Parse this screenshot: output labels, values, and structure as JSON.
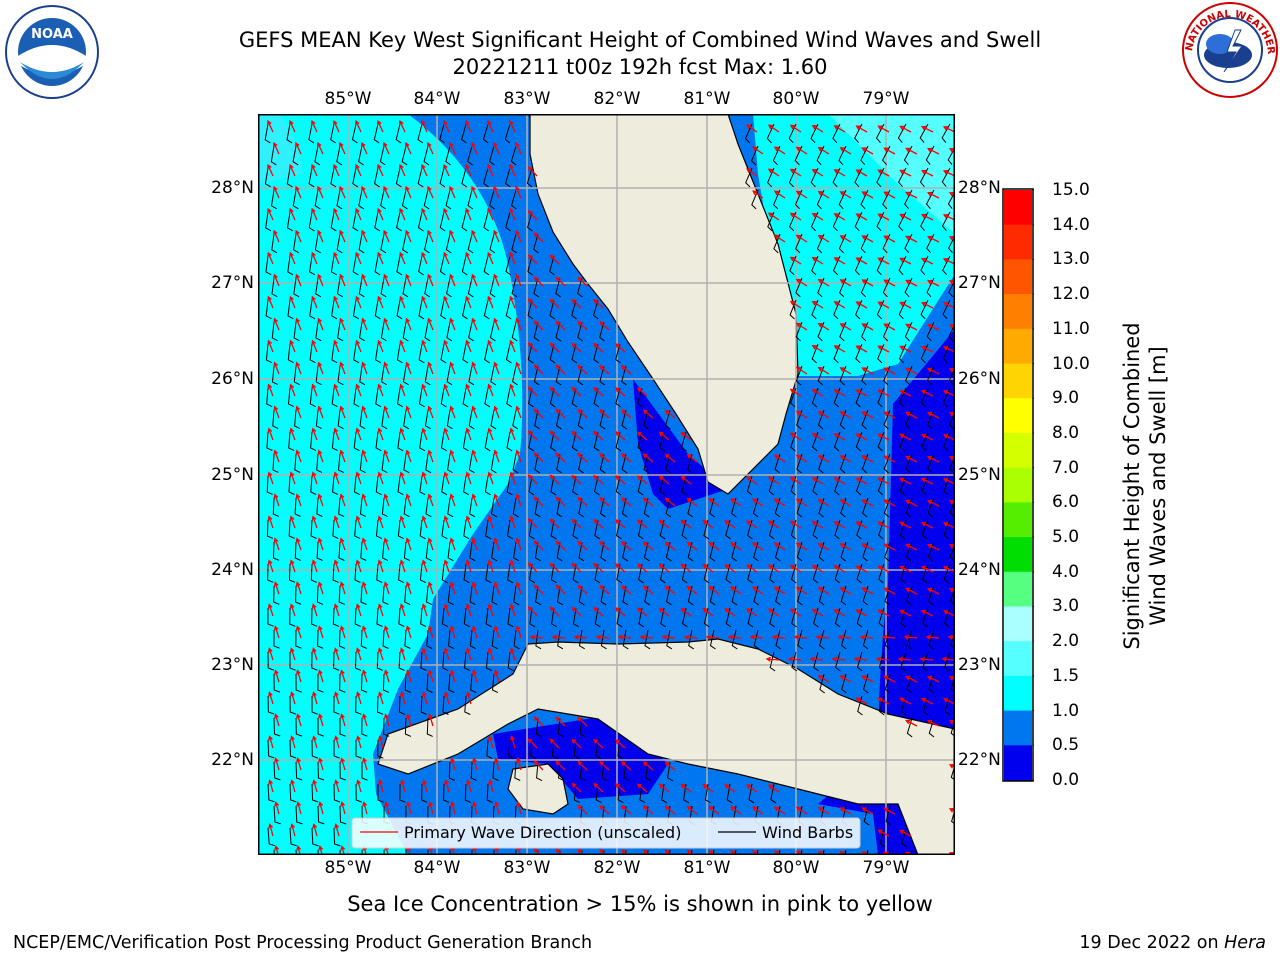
{
  "title": {
    "line1": "GEFS MEAN Key West Significant Height of Combined Wind Waves and Swell",
    "line2": "20221211 t00z 192h fcst   Max: 1.60"
  },
  "logos": {
    "left": {
      "name": "noaa-logo",
      "text": "NOAA"
    },
    "right": {
      "name": "nws-logo",
      "text": "NATIONAL WEATHER SERVICE"
    }
  },
  "map": {
    "lon_ticks": [
      "85°W",
      "84°W",
      "83°W",
      "82°W",
      "81°W",
      "80°W",
      "79°W"
    ],
    "lat_ticks": [
      "28°N",
      "27°N",
      "26°N",
      "25°N",
      "24°N",
      "23°N",
      "22°N"
    ],
    "legend": {
      "wave": "Primary Wave Direction (unscaled)",
      "barbs": "Wind Barbs"
    },
    "colors": {
      "land": "#eeecdc",
      "band_0_0.5": "#0000ee",
      "band_0.5_1.0": "#0077ee",
      "band_1.0_1.5": "#00ffff",
      "band_1.5_2.0": "#55ffff",
      "wave_arrow": "#ff0000",
      "barb": "#000000"
    }
  },
  "colorbar": {
    "label_line1": "Significant Height of Combined",
    "label_line2": "Wind Waves and Swell [m]",
    "ticks": [
      "15.0",
      "14.0",
      "13.0",
      "12.0",
      "11.0",
      "10.0",
      "9.0",
      "8.0",
      "7.0",
      "6.0",
      "5.0",
      "4.0",
      "3.0",
      "2.0",
      "1.5",
      "1.0",
      "0.5",
      "0.0"
    ],
    "colors": [
      "#ff0000",
      "#ff2a00",
      "#ff5500",
      "#ff8000",
      "#ffaa00",
      "#ffd400",
      "#ffff00",
      "#d4ff00",
      "#aaff00",
      "#55ee00",
      "#00dd00",
      "#55ff80",
      "#aaffff",
      "#55ffff",
      "#00ffff",
      "#0077ee",
      "#0000ee"
    ]
  },
  "notes": {
    "sea_ice": "Sea Ice Concentration > 15% is shown in pink to yellow"
  },
  "footer": {
    "left": "NCEP/EMC/Verification Post Processing Product Generation Branch",
    "right_prefix": "19 Dec 2022 on ",
    "right_machine": "Hera"
  }
}
